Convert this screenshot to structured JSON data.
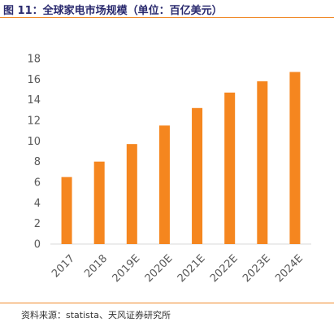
{
  "header": {
    "title": "图 11：全球家电市场规模（单位：百亿美元）"
  },
  "footer": {
    "source": "资料来源：statista、天风证券研究所"
  },
  "colors": {
    "bar": "#f5861f",
    "accent_rule": "#f08a2a",
    "title": "#2a2a6e",
    "axis": "#d9d9d9",
    "text": "#595959"
  },
  "chart_data": {
    "type": "bar",
    "title": "图 11：全球家电市场规模（单位：百亿美元）",
    "categories": [
      "2017",
      "2018",
      "2019E",
      "2020E",
      "2021E",
      "2022E",
      "2023E",
      "2024E"
    ],
    "values": [
      6.5,
      8.0,
      9.7,
      11.5,
      13.2,
      14.7,
      15.8,
      16.7
    ],
    "yticks": [
      0,
      2,
      4,
      6,
      8,
      10,
      12,
      14,
      16,
      18
    ],
    "ylim": [
      0,
      18
    ],
    "xlabel": "",
    "ylabel": "",
    "grid": false,
    "legend": "none"
  }
}
